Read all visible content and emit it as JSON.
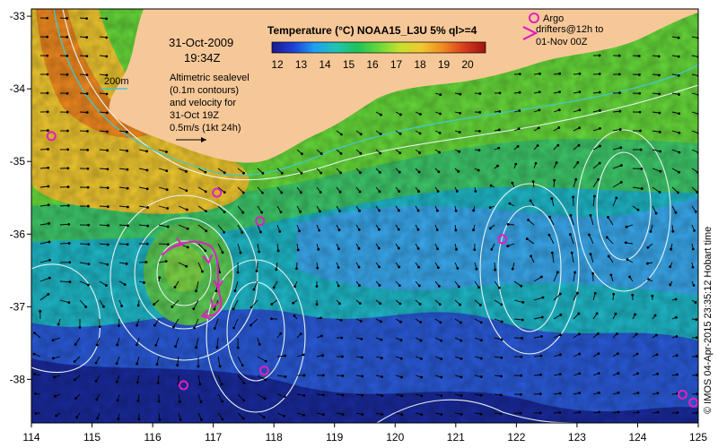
{
  "date": "31-Oct-2009",
  "time": "19:34Z",
  "colorbar": {
    "title": "Temperature (°C) NOAA15_L3U 5% ql>=4",
    "ticks": [
      "12",
      "13",
      "14",
      "15",
      "16",
      "17",
      "18",
      "19",
      "20"
    ],
    "stops": [
      "#1a1a8c",
      "#1f3fd8",
      "#1fa0f0",
      "#22c3b4",
      "#1fc25a",
      "#66d83a",
      "#c8e02e",
      "#f0c830",
      "#f08a20",
      "#d83c1e",
      "#a01410"
    ]
  },
  "contour_label": "200m",
  "sealevel_note": [
    "Altimetric sealevel",
    "(0.1m contours)",
    "and velocity for",
    "31-Oct 19Z"
  ],
  "velocity_scale": "0.5m/s (1kt 24h)",
  "argo_legend": {
    "circle_label": "Argo",
    "drifter_lines": [
      "drifters@12h to",
      "01-Nov 00Z"
    ]
  },
  "credit": "© IMOS 04-Apr-2015 23:35:12 Hobart time",
  "x_axis": {
    "range": [
      114,
      125
    ],
    "ticks": [
      "114",
      "115",
      "116",
      "117",
      "118",
      "119",
      "120",
      "121",
      "122",
      "123",
      "124",
      "125"
    ]
  },
  "y_axis": {
    "range": [
      -38.6,
      -32.9
    ],
    "ticks": [
      "-33",
      "-34",
      "-35",
      "-36",
      "-37",
      "-38"
    ]
  },
  "argo_floats": [
    {
      "lon": 114.33,
      "lat": -34.65
    },
    {
      "lon": 117.06,
      "lat": -35.43
    },
    {
      "lon": 117.77,
      "lat": -35.82
    },
    {
      "lon": 121.77,
      "lat": -36.07
    },
    {
      "lon": 116.51,
      "lat": -38.08
    },
    {
      "lon": 117.84,
      "lat": -37.88
    },
    {
      "lon": 124.74,
      "lat": -38.21
    },
    {
      "lon": 124.92,
      "lat": -38.32
    }
  ],
  "colors": {
    "land": "#f6c898",
    "contour": "#e8f4f0",
    "isobath": "#40c8c8",
    "argo": "#e020c0",
    "frame": "#000000"
  }
}
